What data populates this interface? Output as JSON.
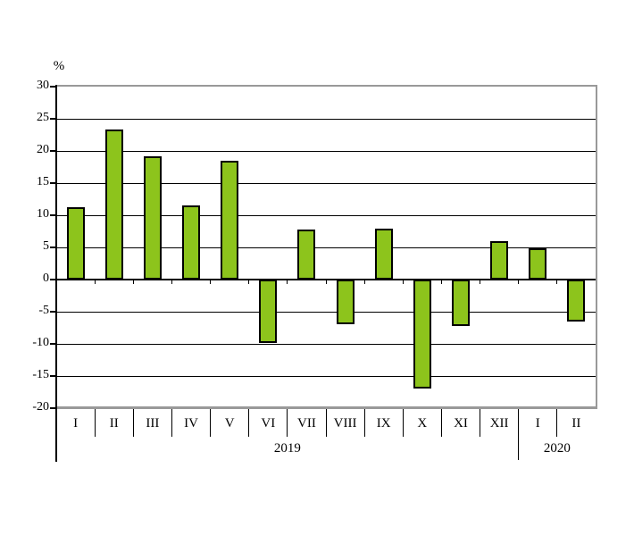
{
  "page": {
    "background": "#ffffff"
  },
  "chart_data": {
    "type": "bar",
    "title": "",
    "xlabel": "",
    "ylabel": "%",
    "categories": [
      "I",
      "II",
      "III",
      "IV",
      "V",
      "VI",
      "VII",
      "VIII",
      "IX",
      "X",
      "XI",
      "XII",
      "I",
      "II"
    ],
    "category_groups": [
      {
        "label": "2019",
        "span": 12
      },
      {
        "label": "2020",
        "span": 2
      }
    ],
    "series": [
      {
        "name": "monthly-change-percent",
        "values": [
          11.3,
          23.4,
          19.2,
          11.5,
          18.5,
          -9.8,
          7.8,
          -6.9,
          7.9,
          -16.9,
          -7.2,
          6.0,
          4.8,
          -6.5
        ]
      }
    ],
    "ylim": [
      -20,
      30
    ],
    "ytick_step": 5,
    "grid": true,
    "legend": "none",
    "bar_color": "#8DC41C",
    "bar_border_color": "#000000",
    "frame_color": "#999999",
    "gridline_color": "#000000"
  }
}
